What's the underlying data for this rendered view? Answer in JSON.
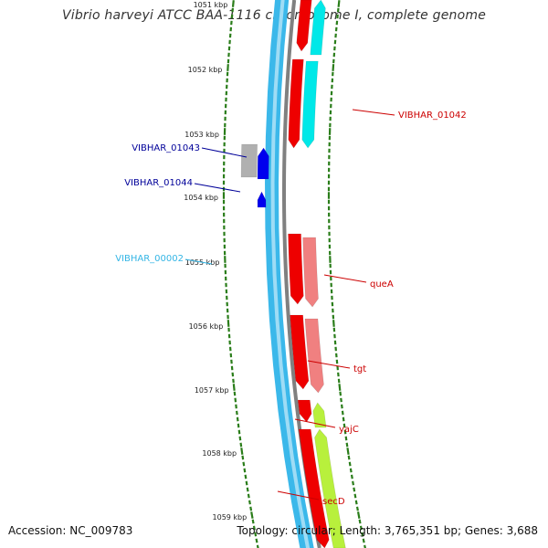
{
  "title": "Vibrio harveyi ATCC BAA-1116 chromosome I, complete genome",
  "footer": {
    "accession": "Accession: NC_009783",
    "topology": "Topology: circular; Length: 3,765,351 bp; Genes: 3,688"
  },
  "colors": {
    "background": "#ffffff",
    "backbone_outer": "#3bb8ea",
    "backbone_inner": "#9fdcf5",
    "backbone_line": "#808080",
    "tick": "#2a7d1a",
    "label_red": "#cc0000",
    "label_blue": "#000099",
    "label_cyan": "#33b5e5"
  },
  "kbp_ticks": [
    "1051 kbp",
    "1052 kbp",
    "1053 kbp",
    "1054 kbp",
    "1055 kbp",
    "1056 kbp",
    "1057 kbp",
    "1058 kbp",
    "1059 kbp"
  ],
  "gene_labels": [
    {
      "text": "VIBHAR_01042",
      "color": "#cc0000"
    },
    {
      "text": "VIBHAR_01043",
      "color": "#000099"
    },
    {
      "text": "VIBHAR_01044",
      "color": "#000099"
    },
    {
      "text": "VIBHAR_00002",
      "color": "#33b5e5"
    },
    {
      "text": "queA",
      "color": "#cc0000"
    },
    {
      "text": "tgt",
      "color": "#cc0000"
    },
    {
      "text": "yajC",
      "color": "#cc0000"
    },
    {
      "text": "secD",
      "color": "#cc0000"
    }
  ]
}
